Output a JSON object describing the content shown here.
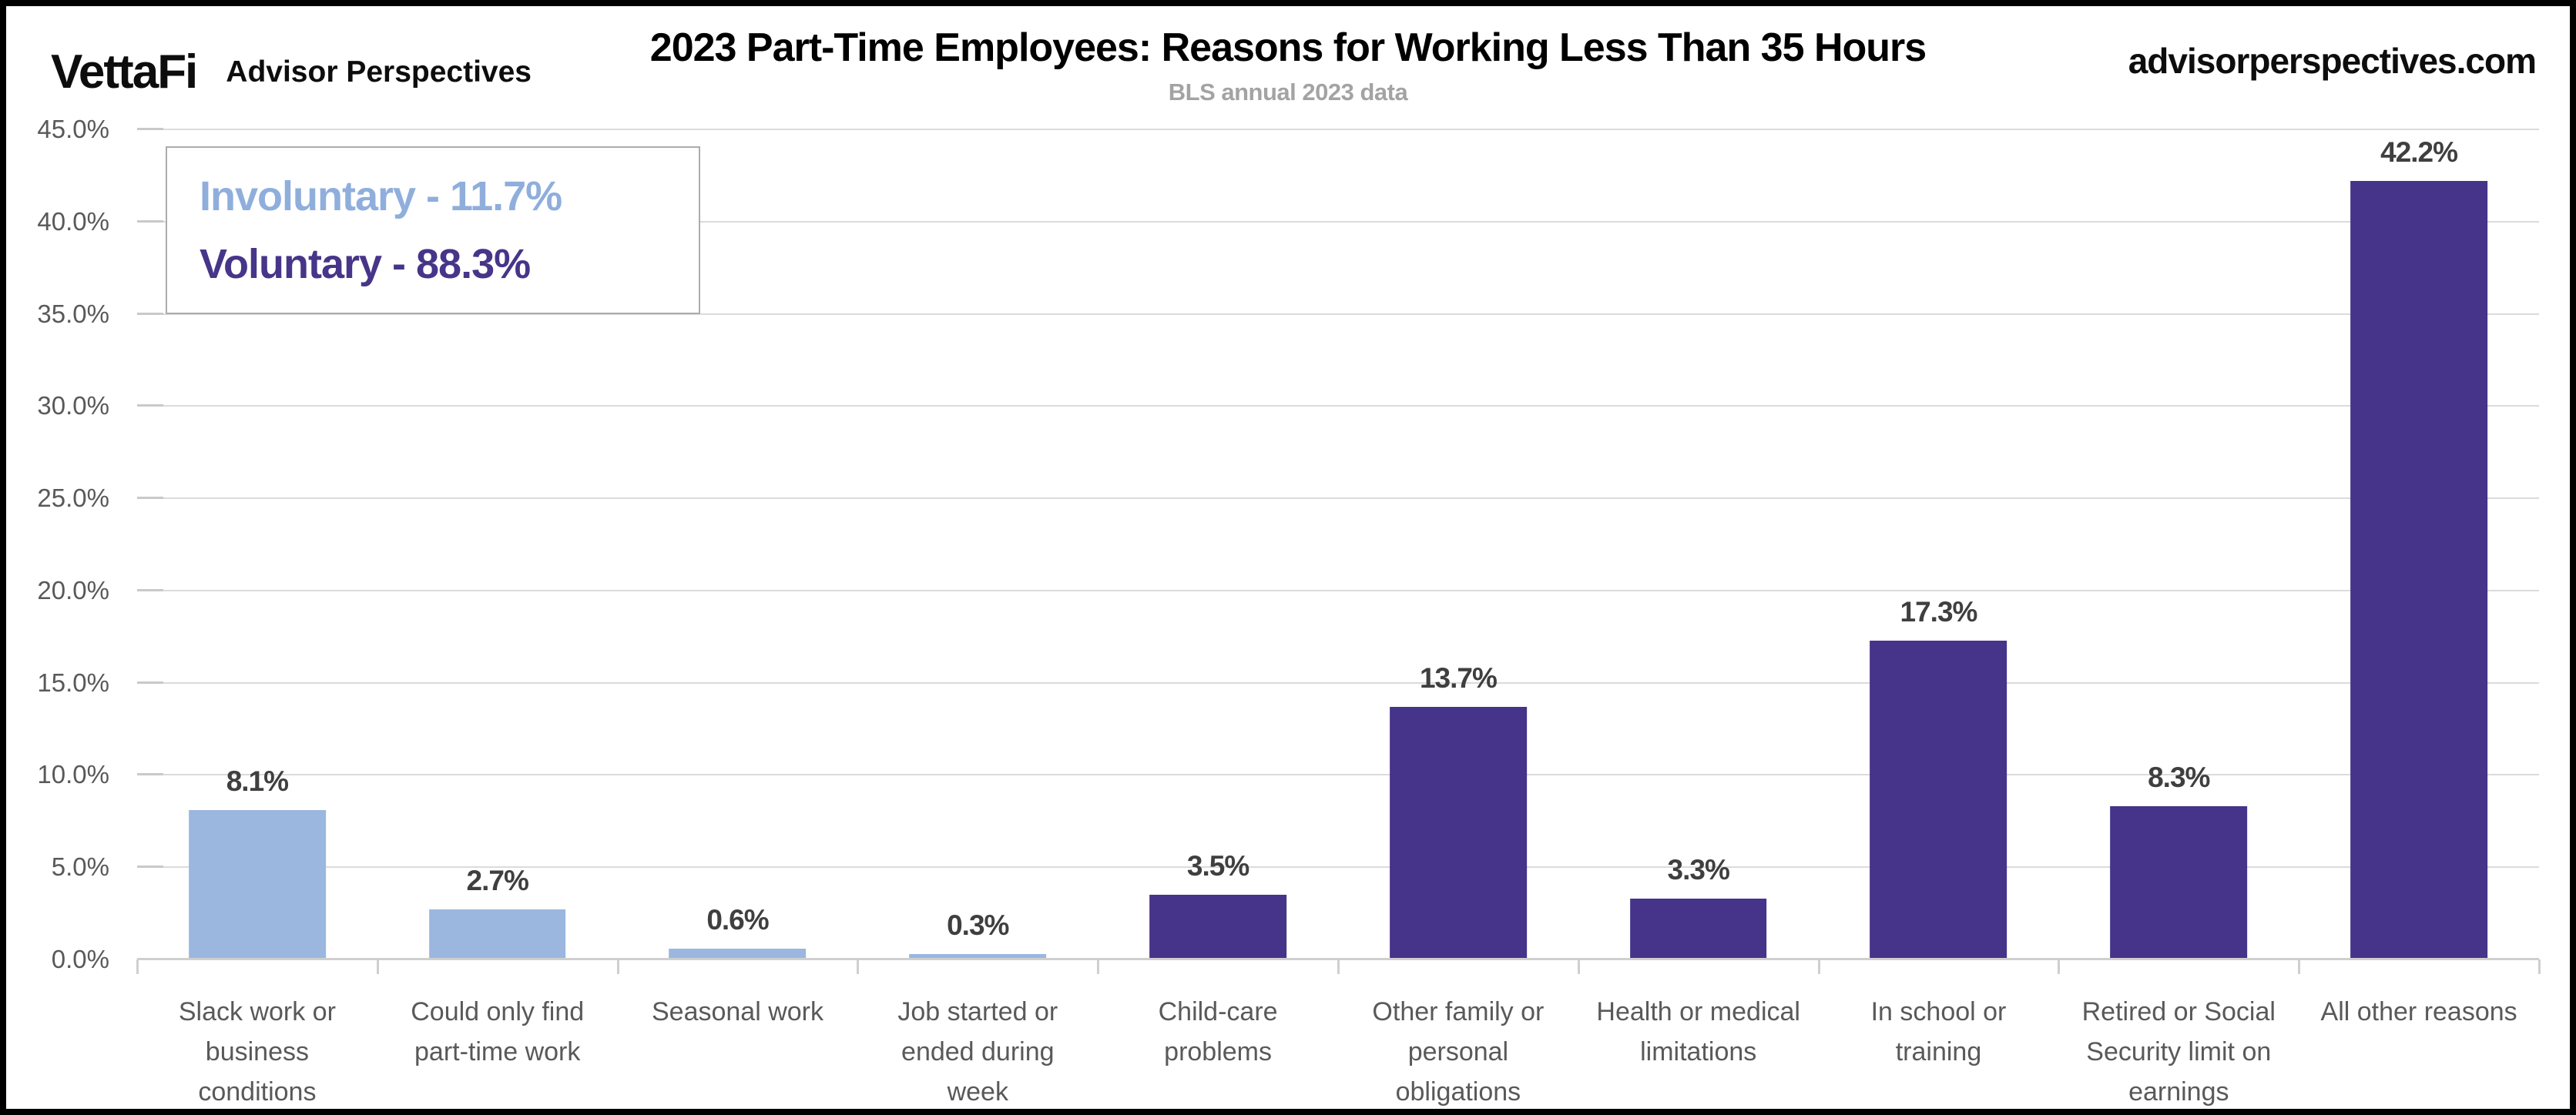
{
  "header": {
    "brand": "VettaFi",
    "brand_suffix": "Advisor Perspectives",
    "title": "2023 Part-Time Employees: Reasons for Working Less Than 35 Hours",
    "subtitle": "BLS annual 2023 data",
    "website": "advisorperspectives.com"
  },
  "legend": {
    "items": [
      {
        "label": "Involuntary - 11.7%",
        "color": "#8faedc"
      },
      {
        "label": "Voluntary - 88.3%",
        "color": "#473589"
      }
    ]
  },
  "chart_data": {
    "type": "bar",
    "title": "2023 Part-Time Employees: Reasons for Working Less Than 35 Hours",
    "subtitle": "BLS annual 2023 data",
    "categories": [
      "Slack work or\nbusiness\nconditions",
      "Could only find\npart-time work",
      "Seasonal work",
      "Job started or\nended during\nweek",
      "Child-care\nproblems",
      "Other family or\npersonal\nobligations",
      "Health or medical\nlimitations",
      "In school or\ntraining",
      "Retired or Social\nSecurity limit on\nearnings",
      "All other reasons"
    ],
    "values": [
      8.1,
      2.7,
      0.6,
      0.3,
      3.5,
      13.7,
      3.3,
      17.3,
      8.3,
      42.2
    ],
    "value_labels": [
      "8.1%",
      "2.7%",
      "0.6%",
      "0.3%",
      "3.5%",
      "13.7%",
      "3.3%",
      "17.3%",
      "8.3%",
      "42.2%"
    ],
    "groups": [
      "involuntary",
      "involuntary",
      "involuntary",
      "involuntary",
      "voluntary",
      "voluntary",
      "voluntary",
      "voluntary",
      "voluntary",
      "voluntary"
    ],
    "group_colors": {
      "involuntary": "#9bb7df",
      "voluntary": "#46338a"
    },
    "group_totals": {
      "involuntary": "11.7%",
      "voluntary": "88.3%"
    },
    "xlabel": "",
    "ylabel": "",
    "ylim": [
      0,
      45
    ],
    "yticks": [
      {
        "value": 0,
        "label": "0.0%"
      },
      {
        "value": 5,
        "label": "5.0%"
      },
      {
        "value": 10,
        "label": "10.0%"
      },
      {
        "value": 15,
        "label": "15.0%"
      },
      {
        "value": 20,
        "label": "20.0%"
      },
      {
        "value": 25,
        "label": "25.0%"
      },
      {
        "value": 30,
        "label": "30.0%"
      },
      {
        "value": 35,
        "label": "35.0%"
      },
      {
        "value": 40,
        "label": "40.0%"
      },
      {
        "value": 45,
        "label": "45.0%"
      }
    ],
    "grid": true,
    "legend_position": "top-left"
  },
  "colors": {
    "gridline": "#dbdbdb",
    "axis_line": "#cfcfcf",
    "tick_label": "#595959",
    "value_label": "#3f3f3f",
    "frame_border": "#000000",
    "background": "#ffffff"
  }
}
